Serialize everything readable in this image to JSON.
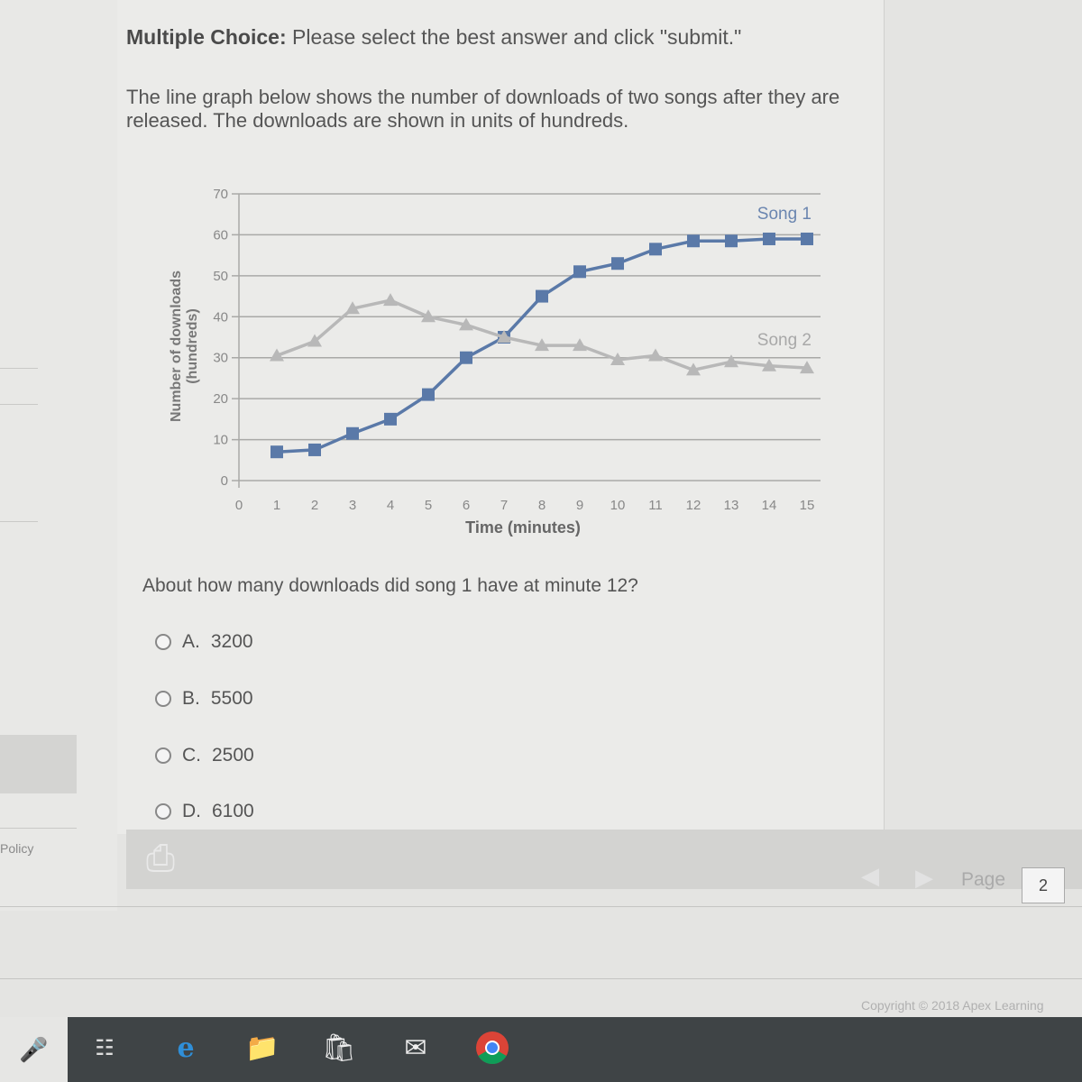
{
  "sidebar": {
    "policy_label": "Policy"
  },
  "question": {
    "instruction_bold": "Multiple Choice:",
    "instruction_rest": " Please select the best answer and click \"submit.\"",
    "prompt": "The line graph below shows the number of downloads of two songs after they are released. The downloads are shown in units of hundreds.",
    "text": "About how many downloads did song 1 have at minute 12?",
    "options": [
      {
        "letter": "A.",
        "value": "3200"
      },
      {
        "letter": "B.",
        "value": "5500"
      },
      {
        "letter": "C.",
        "value": "2500"
      },
      {
        "letter": "D.",
        "value": "6100"
      }
    ]
  },
  "chart_data": {
    "type": "line",
    "xlabel": "Time (minutes)",
    "ylabel": "Number of downloads (hundreds)",
    "ylabel_lines": [
      "Number of downloads",
      "(hundreds)"
    ],
    "xlim": [
      0,
      15
    ],
    "ylim": [
      0,
      70
    ],
    "xticks": [
      "0",
      "1",
      "2",
      "3",
      "4",
      "5",
      "6",
      "7",
      "8",
      "9",
      "10",
      "11",
      "12",
      "13",
      "14",
      "15"
    ],
    "yticks": [
      "0",
      "10",
      "20",
      "30",
      "40",
      "50",
      "60",
      "70"
    ],
    "grid": true,
    "x": [
      1,
      2,
      3,
      4,
      5,
      6,
      7,
      8,
      9,
      10,
      11,
      12,
      13,
      14,
      15
    ],
    "series": [
      {
        "name": "Song 1",
        "color": "#5a79a8",
        "marker": "square",
        "values": [
          7,
          7.5,
          11.5,
          15,
          21,
          30,
          35,
          45,
          51,
          53,
          56.5,
          58.5,
          58.5,
          59,
          59
        ]
      },
      {
        "name": "Song 2",
        "color": "#b8b8b8",
        "marker": "triangle",
        "values": [
          30.5,
          34,
          42,
          44,
          40,
          38,
          35,
          33,
          33,
          29.5,
          30.5,
          27,
          29,
          28,
          27.5
        ]
      }
    ]
  },
  "toolbar": {
    "page_label": "Page",
    "page_number": "2"
  },
  "footer": {
    "copyright": "Copyright © 2018 Apex Learning"
  },
  "taskbar": {
    "icons": [
      "microphone-icon",
      "task-view-icon",
      "edge-icon",
      "file-explorer-icon",
      "store-icon",
      "mail-icon",
      "chrome-icon"
    ]
  }
}
